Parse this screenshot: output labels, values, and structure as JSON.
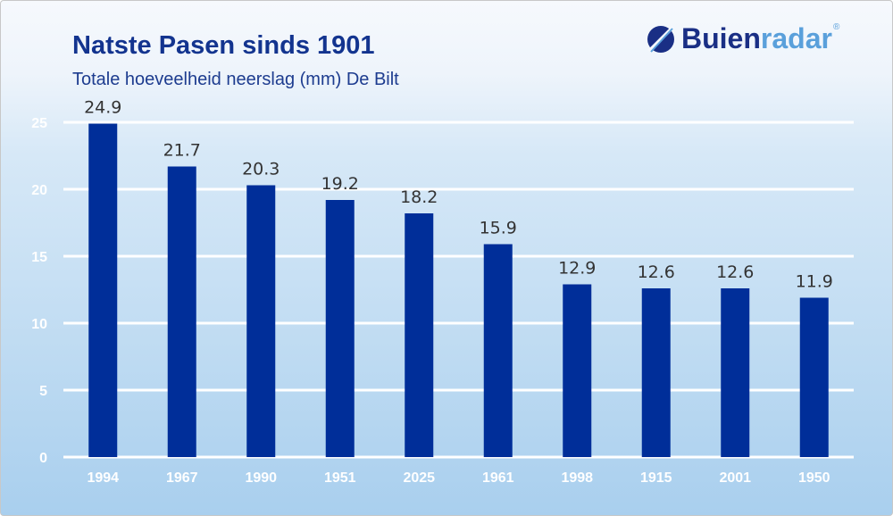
{
  "logo": {
    "text_dark": "Buien",
    "text_light": "radar",
    "registered": "®"
  },
  "chart_data": {
    "type": "bar",
    "title": "Natste Pasen sinds 1901",
    "subtitle": "Totale hoeveelheid neerslag (mm) De Bilt",
    "categories": [
      "1994",
      "1967",
      "1990",
      "1951",
      "2025",
      "1961",
      "1998",
      "1915",
      "2001",
      "1950"
    ],
    "values": [
      24.9,
      21.7,
      20.3,
      19.2,
      18.2,
      15.9,
      12.9,
      12.6,
      12.6,
      11.9
    ],
    "value_labels": [
      "24.9",
      "21.7",
      "20.3",
      "19.2",
      "18.2",
      "15.9",
      "12.9",
      "12.6",
      "12.6",
      "11.9"
    ],
    "yticks": [
      0,
      5,
      10,
      15,
      20,
      25
    ],
    "ylim": [
      0,
      25
    ],
    "grid": true,
    "bar_color": "#002e99",
    "grid_color": "#ffffff"
  }
}
